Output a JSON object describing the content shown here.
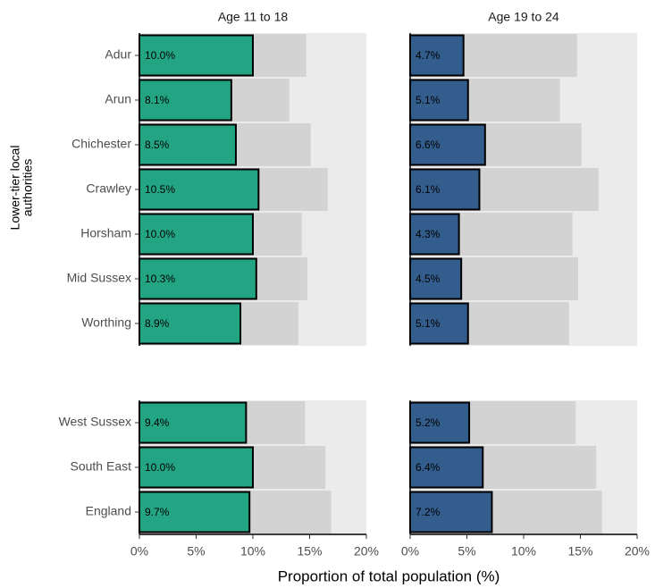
{
  "chart_data": {
    "type": "bar",
    "orientation": "horizontal",
    "xlabel": "Proportion of total population (%)",
    "ylabel": [
      "Lower-tier local",
      "authorities"
    ],
    "xlim": [
      0,
      20
    ],
    "xticks": [
      {
        "value": 0,
        "label": "0%"
      },
      {
        "value": 5,
        "label": "5%"
      },
      {
        "value": 10,
        "label": "10%"
      },
      {
        "value": 15,
        "label": "15%"
      },
      {
        "value": 20,
        "label": "20%"
      }
    ],
    "total_color": "#d3d3d3",
    "columns": [
      {
        "title": "Age 11 to 18",
        "color": "#23a584"
      },
      {
        "title": "Age 19 to 24",
        "color": "#325d8d"
      }
    ],
    "rows": [
      {
        "categories": [
          "Adur",
          "Arun",
          "Chichester",
          "Crawley",
          "Horsham",
          "Mid Sussex",
          "Worthing"
        ],
        "totals": [
          14.7,
          13.2,
          15.1,
          16.6,
          14.3,
          14.8,
          14.0
        ]
      },
      {
        "categories": [
          "West Sussex",
          "South East",
          "England"
        ],
        "totals": [
          14.6,
          16.4,
          16.9
        ]
      }
    ],
    "cells": [
      [
        {
          "values": [
            10.0,
            8.1,
            8.5,
            10.5,
            10.0,
            10.3,
            8.9
          ],
          "value_labels": [
            "10.0%",
            "8.1%",
            "8.5%",
            "10.5%",
            "10.0%",
            "10.3%",
            "8.9%"
          ]
        },
        {
          "values": [
            4.7,
            5.1,
            6.6,
            6.1,
            4.3,
            4.5,
            5.1
          ],
          "value_labels": [
            "4.7%",
            "5.1%",
            "6.6%",
            "6.1%",
            "4.3%",
            "4.5%",
            "5.1%"
          ]
        }
      ],
      [
        {
          "values": [
            9.4,
            10.0,
            9.7
          ],
          "value_labels": [
            "9.4%",
            "10.0%",
            "9.7%"
          ]
        },
        {
          "values": [
            5.2,
            6.4,
            7.2
          ],
          "value_labels": [
            "5.2%",
            "6.4%",
            "7.2%"
          ]
        }
      ]
    ]
  }
}
